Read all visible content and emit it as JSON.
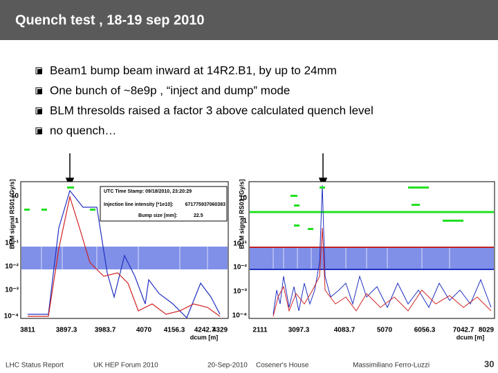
{
  "header": {
    "title": "Quench test ,  18-19 sep 2010"
  },
  "bullets": [
    "Beam1 bump beam inward at 14R2.B1, by up to 24mm",
    "One bunch of ~8e9p , “inject and dump” mode",
    "BLM thresolds raised a factor 3 above calculated quench level",
    "no quench…"
  ],
  "plots": [
    {
      "y_label": "BLM signal RS01 [Gy/s]",
      "x_label": "dcum [m]",
      "y_ticks": [
        "10",
        "1",
        "10⁻¹",
        "10⁻²",
        "10⁻³",
        "10⁻⁴"
      ],
      "x_ticks": [
        "3811",
        "3897.3",
        "3983.7",
        "4070",
        "4156.3",
        "4242.7",
        "4329"
      ],
      "info": [
        "UTC Time Stamp: 09/18/2010, 23:20:29",
        "Injection line intensity [*1e10]:",
        "671775937060383",
        "Bump size [mm]:",
        "22.5"
      ]
    },
    {
      "y_label": "BLM signal RS01 [Gy/s]",
      "x_label": "dcum [m]",
      "y_ticks": [
        "10",
        "1",
        "10⁻¹",
        "10⁻²",
        "10⁻³",
        "10⁻⁴"
      ],
      "x_ticks": [
        "2111",
        "3097.3",
        "4083.7",
        "5070",
        "6056.3",
        "7042.7",
        "8029"
      ]
    }
  ],
  "footer": [
    "LHC Status Report",
    "UK HEP Forum 2010",
    "20-Sep-2010",
    "Cosener's House",
    "Massimiliano Ferro-Luzzi",
    "30"
  ]
}
